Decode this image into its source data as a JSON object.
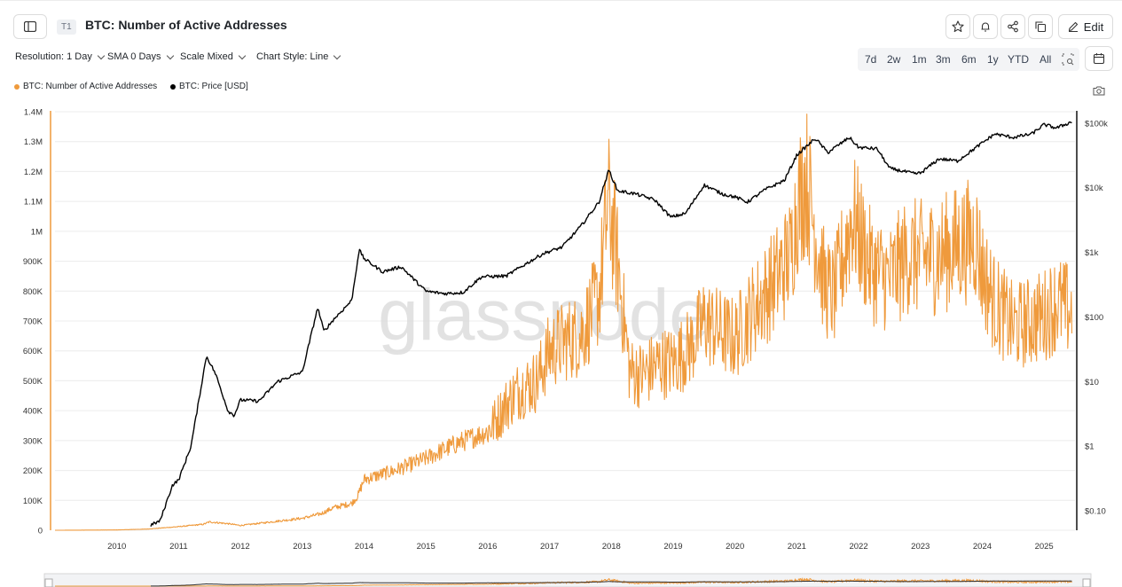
{
  "header": {
    "tag": "T1",
    "title": "BTC: Number of Active Addresses",
    "edit_label": "Edit",
    "icons": [
      "sidebar-icon",
      "star-icon",
      "bell-icon",
      "share-icon",
      "copy-icon",
      "pencil-icon"
    ]
  },
  "toolbar": {
    "resolution": "Resolution: 1 Day",
    "sma": "SMA 0 Days",
    "scale": "Scale Mixed",
    "style": "Chart Style: Line"
  },
  "ranges": [
    "7d",
    "2w",
    "1m",
    "3m",
    "6m",
    "1y",
    "YTD",
    "All"
  ],
  "legend": {
    "series1": "BTC: Number of Active Addresses",
    "series2": "BTC: Price [USD]"
  },
  "watermark": "glassnode",
  "colors": {
    "addresses": "#ef9a3c",
    "price": "#000000",
    "grid": "#ececec"
  },
  "chart_data": {
    "type": "line",
    "title": "BTC: Number of Active Addresses",
    "x_ticks": [
      "2010",
      "2011",
      "2012",
      "2013",
      "2014",
      "2015",
      "2016",
      "2017",
      "2018",
      "2019",
      "2020",
      "2021",
      "2022",
      "2023",
      "2024",
      "2025"
    ],
    "y_left_ticks": [
      "0",
      "100K",
      "200K",
      "300K",
      "400K",
      "500K",
      "600K",
      "700K",
      "800K",
      "900K",
      "1M",
      "1.1M",
      "1.2M",
      "1.3M",
      "1.4M"
    ],
    "y_left_range": [
      0,
      1400000
    ],
    "y_right_ticks": [
      "$0.10",
      "$1",
      "$10",
      "$100",
      "$1k",
      "$10k",
      "$100k"
    ],
    "y_right_scale": "log",
    "x_range": [
      2009.0,
      2025.5
    ],
    "grid": true,
    "legend_position": "top-left",
    "series": [
      {
        "name": "BTC: Number of Active Addresses",
        "axis": "left",
        "color": "#ef9a3c",
        "x": [
          2009.0,
          2010.0,
          2010.5,
          2011.0,
          2011.4,
          2011.5,
          2011.8,
          2012.0,
          2012.5,
          2013.0,
          2013.3,
          2013.5,
          2013.8,
          2013.9,
          2014.0,
          2014.5,
          2015.0,
          2015.5,
          2016.0,
          2016.3,
          2016.5,
          2016.8,
          2017.0,
          2017.3,
          2017.5,
          2017.8,
          2017.95,
          2018.1,
          2018.3,
          2018.5,
          2018.8,
          2019.0,
          2019.3,
          2019.5,
          2019.8,
          2020.0,
          2020.3,
          2020.6,
          2020.9,
          2021.0,
          2021.15,
          2021.3,
          2021.45,
          2021.6,
          2021.9,
          2022.2,
          2022.5,
          2022.8,
          2023.0,
          2023.3,
          2023.6,
          2023.9,
          2024.0,
          2024.2,
          2024.5,
          2024.8,
          2025.0,
          2025.2,
          2025.45
        ],
        "values": [
          0,
          1000,
          4000,
          12000,
          20000,
          28000,
          22000,
          16000,
          28000,
          40000,
          55000,
          75000,
          90000,
          115000,
          170000,
          200000,
          240000,
          290000,
          330000,
          420000,
          470000,
          500000,
          600000,
          640000,
          650000,
          780000,
          1100000,
          900000,
          530000,
          520000,
          560000,
          560000,
          620000,
          700000,
          660000,
          640000,
          740000,
          820000,
          920000,
          1080000,
          1180000,
          1000000,
          820000,
          780000,
          1050000,
          880000,
          840000,
          920000,
          910000,
          920000,
          950000,
          980000,
          870000,
          760000,
          680000,
          700000,
          720000,
          760000,
          730000
        ]
      },
      {
        "name": "BTC: Price [USD]",
        "axis": "right",
        "color": "#000000",
        "x": [
          2010.55,
          2010.7,
          2010.9,
          2011.0,
          2011.2,
          2011.45,
          2011.6,
          2011.8,
          2011.9,
          2012.0,
          2012.3,
          2012.6,
          2012.9,
          2013.0,
          2013.25,
          2013.35,
          2013.5,
          2013.8,
          2013.92,
          2014.0,
          2014.3,
          2014.6,
          2015.0,
          2015.3,
          2015.6,
          2015.9,
          2016.3,
          2016.6,
          2016.9,
          2017.2,
          2017.5,
          2017.8,
          2017.96,
          2018.1,
          2018.4,
          2018.7,
          2018.96,
          2019.2,
          2019.5,
          2019.8,
          2020.0,
          2020.2,
          2020.5,
          2020.8,
          2021.0,
          2021.3,
          2021.5,
          2021.85,
          2022.0,
          2022.3,
          2022.5,
          2022.9,
          2023.0,
          2023.3,
          2023.6,
          2023.9,
          2024.2,
          2024.5,
          2024.8,
          2025.0,
          2025.2,
          2025.45
        ],
        "values": [
          0.06,
          0.07,
          0.25,
          0.3,
          1.0,
          25,
          13,
          3.5,
          3.0,
          5.2,
          5.0,
          10,
          13,
          14,
          140,
          60,
          90,
          180,
          1100,
          800,
          500,
          600,
          250,
          230,
          240,
          420,
          430,
          650,
          960,
          1200,
          2500,
          6000,
          19000,
          9000,
          8000,
          6500,
          3500,
          4000,
          11000,
          8000,
          7200,
          6000,
          9500,
          13000,
          32000,
          58000,
          35000,
          60000,
          42000,
          40000,
          20000,
          16500,
          16800,
          28000,
          26000,
          42000,
          68000,
          60000,
          68000,
          95000,
          84000,
          105000
        ]
      }
    ]
  }
}
